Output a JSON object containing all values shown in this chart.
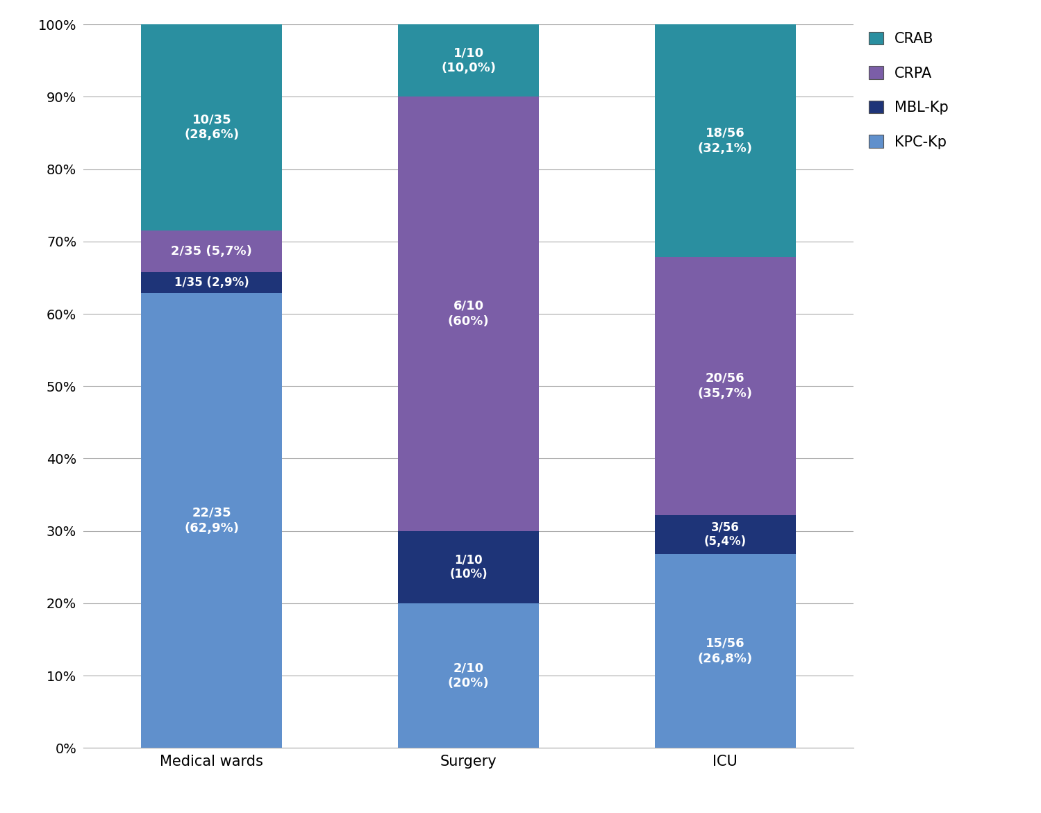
{
  "categories": [
    "Medical wards",
    "Surgery",
    "ICU"
  ],
  "series": {
    "KPC-Kp": {
      "values": [
        62.9,
        20.0,
        26.8
      ],
      "labels": [
        "22/35\n(62,9%)",
        "2/10\n(20%)",
        "15/56\n(26,8%)"
      ],
      "color": "#6090cc"
    },
    "MBL-Kp": {
      "values": [
        2.9,
        10.0,
        5.4
      ],
      "labels": [
        "1/35 (2,9%)",
        "1/10\n(10%)",
        "3/56\n(5,4%)"
      ],
      "color": "#1e3478"
    },
    "CRPA": {
      "values": [
        5.7,
        60.0,
        35.7
      ],
      "labels": [
        "2/35 (5,7%)",
        "6/10\n(60%)",
        "20/56\n(35,7%)"
      ],
      "color": "#7b5ea7"
    },
    "CRAB": {
      "values": [
        28.6,
        10.0,
        32.1
      ],
      "labels": [
        "10/35\n(28,6%)",
        "1/10\n(10,0%)",
        "18/56\n(32,1%)"
      ],
      "color": "#2a8fa0"
    }
  },
  "bar_width": 0.55,
  "ylim": [
    0,
    100
  ],
  "yticks": [
    0,
    10,
    20,
    30,
    40,
    50,
    60,
    70,
    80,
    90,
    100
  ],
  "ytick_labels": [
    "0%",
    "10%",
    "20%",
    "30%",
    "40%",
    "50%",
    "60%",
    "70%",
    "80%",
    "90%",
    "100%"
  ],
  "legend_labels": [
    "CRAB",
    "CRPA",
    "MBL-Kp",
    "KPC-Kp"
  ],
  "legend_colors": [
    "#2a8fa0",
    "#7b5ea7",
    "#1e3478",
    "#6090cc"
  ],
  "text_color": "white",
  "label_fontsize": 13,
  "tick_fontsize": 14,
  "legend_fontsize": 15,
  "x_positions": [
    0,
    1,
    2
  ]
}
